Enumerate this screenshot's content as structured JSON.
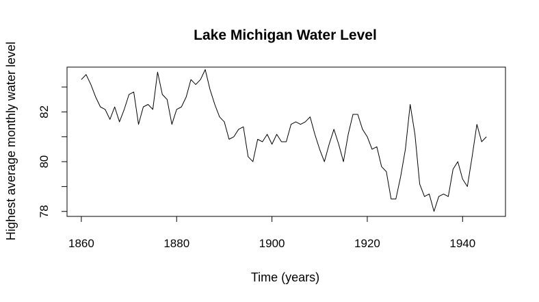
{
  "chart_data": {
    "type": "line",
    "title": "Lake Michigan Water Level",
    "xlabel": "Time (years)",
    "ylabel": "Highest average monthly water level",
    "xlim": [
      1857,
      1949
    ],
    "ylim": [
      77.8,
      83.8
    ],
    "x_ticks": [
      1860,
      1880,
      1900,
      1920,
      1940
    ],
    "x_tick_labels": [
      "1860",
      "1880",
      "1900",
      "1920",
      "1940"
    ],
    "y_ticks": [
      78,
      80,
      82
    ],
    "y_tick_labels": [
      "78",
      "80",
      "82"
    ],
    "y_minor_ticks": [
      79,
      81,
      83
    ],
    "grid": false,
    "legend": "none",
    "x_start": 1860,
    "values": [
      83.3,
      83.5,
      83.1,
      82.6,
      82.2,
      82.1,
      81.7,
      82.2,
      81.6,
      82.1,
      82.7,
      82.8,
      81.5,
      82.2,
      82.3,
      82.1,
      83.6,
      82.7,
      82.5,
      81.5,
      82.1,
      82.2,
      82.6,
      83.3,
      83.1,
      83.3,
      83.7,
      82.9,
      82.3,
      81.8,
      81.6,
      80.9,
      81.0,
      81.3,
      81.4,
      80.2,
      80.0,
      80.9,
      80.8,
      81.1,
      80.7,
      81.1,
      80.8,
      80.8,
      81.5,
      81.6,
      81.5,
      81.6,
      81.8,
      81.1,
      80.5,
      80.0,
      80.7,
      81.3,
      80.7,
      80.0,
      81.1,
      81.9,
      81.9,
      81.3,
      81.0,
      80.5,
      80.6,
      79.8,
      79.6,
      78.5,
      78.5,
      79.4,
      80.5,
      82.3,
      81.1,
      79.1,
      78.6,
      78.7,
      78.0,
      78.6,
      78.7,
      78.6,
      79.7,
      80.0,
      79.3,
      79.0,
      80.2,
      81.5,
      80.8,
      81.0
    ]
  }
}
